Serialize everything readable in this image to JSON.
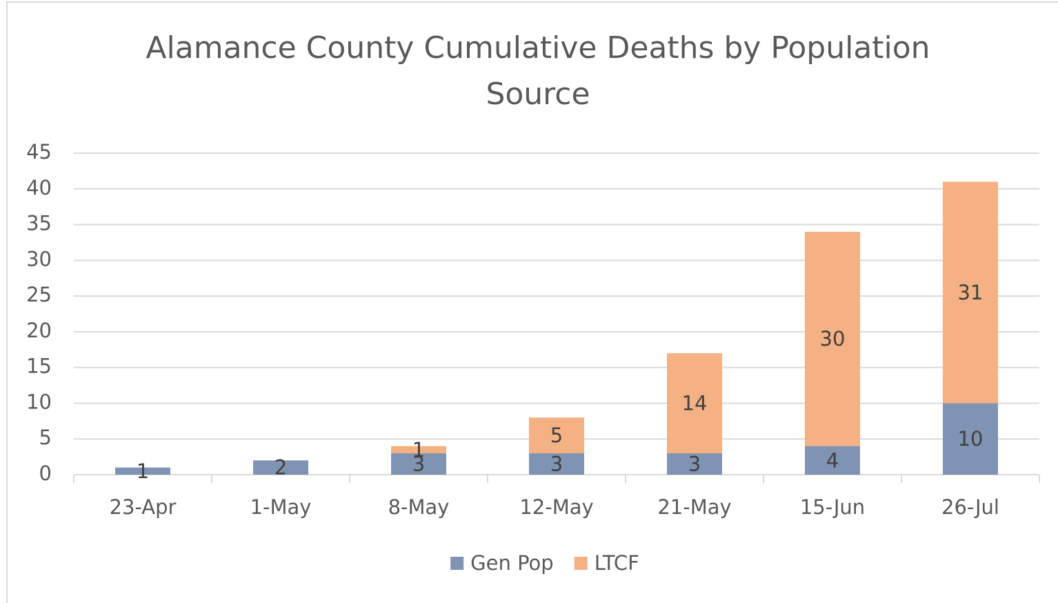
{
  "chart_data": {
    "type": "bar",
    "stacked": true,
    "title": "Alamance County Cumulative Deaths by Population Source",
    "categories": [
      "23-Apr",
      "1-May",
      "8-May",
      "12-May",
      "21-May",
      "15-Jun",
      "26-Jul"
    ],
    "series": [
      {
        "name": "Gen Pop",
        "color": "#7f93b2",
        "values": [
          1,
          2,
          3,
          3,
          3,
          4,
          10
        ]
      },
      {
        "name": "LTCF",
        "color": "#f4b183",
        "values": [
          null,
          null,
          1,
          5,
          14,
          30,
          31
        ]
      }
    ],
    "ylim": [
      0,
      45
    ],
    "yticks": [
      0,
      5,
      10,
      15,
      20,
      25,
      30,
      35,
      40,
      45
    ],
    "grid": true,
    "legend": "bottom"
  }
}
